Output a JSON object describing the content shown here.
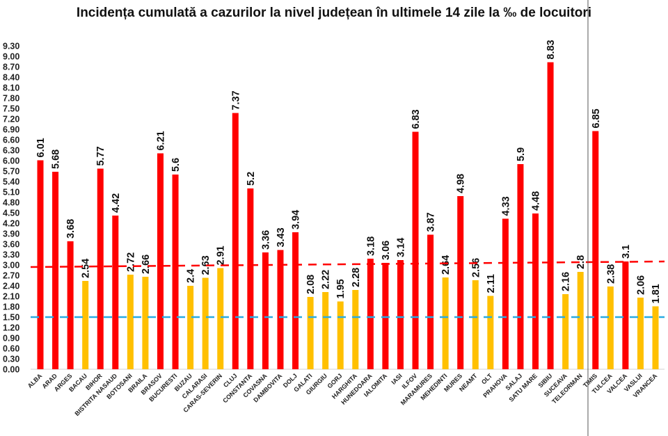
{
  "chart_data": {
    "type": "bar",
    "title": "Incidența cumulată a cazurilor la nivel județean în ultimele 14 zile la ‰ de locuitori",
    "xlabel": "",
    "ylabel": "",
    "ylim": [
      0,
      9.3
    ],
    "yticks_step": 0.3,
    "grid": false,
    "categories": [
      "ALBA",
      "ARAD",
      "ARGES",
      "BACAU",
      "BIHOR",
      "BISTRITA NASAUD",
      "BOTOSANI",
      "BRAILA",
      "BRASOV",
      "BUCURESTI",
      "BUZAU",
      "CALARASI",
      "CARAS-SEVERIN",
      "CLUJ",
      "CONSTANTA",
      "COVASNA",
      "DAMBOVITA",
      "DOLJ",
      "GALATI",
      "GIURGIU",
      "GORJ",
      "HARGHITA",
      "HUNEDOARA",
      "IALOMITA",
      "IASI",
      "ILFOV",
      "MARAMURES",
      "MEHEDINTI",
      "MURES",
      "NEAMT",
      "OLT",
      "PRAHOVA",
      "SALAJ",
      "SATU MARE",
      "SIBIU",
      "SUCEAVA",
      "TELEORMAN",
      "TIMIS",
      "TULCEA",
      "VALCEA",
      "VASLUI",
      "VRANCEA"
    ],
    "values": [
      6.01,
      5.68,
      3.68,
      2.54,
      5.77,
      4.42,
      2.72,
      2.66,
      6.21,
      5.6,
      2.4,
      2.63,
      2.91,
      7.37,
      5.2,
      3.36,
      3.43,
      3.94,
      2.08,
      2.22,
      1.95,
      2.28,
      3.18,
      3.06,
      3.14,
      6.83,
      3.87,
      2.64,
      4.98,
      2.56,
      2.11,
      4.33,
      5.9,
      4.48,
      8.83,
      2.16,
      2.8,
      6.85,
      2.38,
      3.1,
      2.06,
      1.81
    ],
    "color_threshold": 3,
    "colors": {
      "above": "#ff0000",
      "below": "#ffc000"
    },
    "reference_lines": [
      {
        "color": "#ff0000",
        "style": "dashed",
        "from": 2.94,
        "to": 3.1
      },
      {
        "color": "#29abe2",
        "style": "dashed",
        "from": 1.5,
        "to": 1.5
      }
    ],
    "separator_after": "TELEORMAN"
  }
}
